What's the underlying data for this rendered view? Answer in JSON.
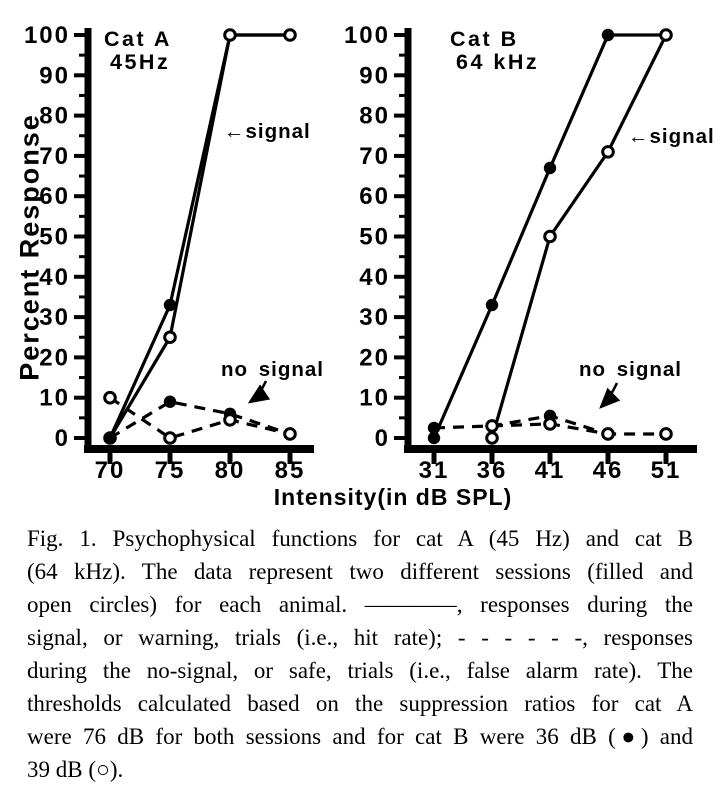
{
  "figure": {
    "y_axis_label": "Percent Response",
    "x_axis_label": "Intensity(in dB SPL)"
  },
  "chart_data": [
    {
      "type": "line",
      "title": "Cat A",
      "subtitle": "45Hz",
      "ylabel": "Percent Response",
      "xlabel": "Intensity(in dB SPL)",
      "ylim": [
        0,
        100
      ],
      "y_tick_step": 10,
      "y_minor_tick_step": 5,
      "x_ticks": [
        70,
        75,
        80,
        85
      ],
      "annotations": {
        "signal_label": "←signal",
        "no_signal_label": "no signal"
      },
      "series": [
        {
          "name": "signal - session 1 (filled circles)",
          "line": "solid",
          "marker": "filled",
          "x": [
            70,
            75,
            80,
            85
          ],
          "y": [
            0,
            33,
            100,
            100
          ]
        },
        {
          "name": "signal - session 2 (open circles)",
          "line": "solid",
          "marker": "open",
          "x": [
            70,
            75,
            80,
            85
          ],
          "y": [
            0,
            25,
            100,
            100
          ]
        },
        {
          "name": "no signal - session 1 (filled circles)",
          "line": "dashed",
          "marker": "filled",
          "x": [
            70,
            75,
            80,
            85
          ],
          "y": [
            0,
            9,
            6,
            1
          ]
        },
        {
          "name": "no signal - session 2 (open circles)",
          "line": "dashed",
          "marker": "open",
          "x": [
            70,
            75,
            80,
            85
          ],
          "y": [
            10,
            0,
            4.5,
            1
          ]
        }
      ]
    },
    {
      "type": "line",
      "title": "Cat B",
      "subtitle": "64 kHz",
      "ylabel": "Percent Response",
      "xlabel": "Intensity(in dB SPL)",
      "ylim": [
        0,
        100
      ],
      "y_tick_step": 10,
      "y_minor_tick_step": 5,
      "x_ticks": [
        31,
        36,
        41,
        46,
        51
      ],
      "annotations": {
        "signal_label": "←signal",
        "no_signal_label": "no signal"
      },
      "series": [
        {
          "name": "signal - session 1 (filled circles)",
          "line": "solid",
          "marker": "filled",
          "x": [
            31,
            36,
            41,
            46,
            51
          ],
          "y": [
            0,
            33,
            67,
            100,
            100
          ]
        },
        {
          "name": "signal - session 2 (open circles)",
          "line": "solid",
          "marker": "open",
          "x": [
            36,
            41,
            46,
            51
          ],
          "y": [
            0,
            50,
            71,
            100
          ]
        },
        {
          "name": "no signal - session 1 (filled circles)",
          "line": "dashed",
          "marker": "filled",
          "x": [
            31,
            36,
            41,
            46
          ],
          "y": [
            2.5,
            3,
            5.5,
            1
          ]
        },
        {
          "name": "no signal - session 2 (open circles)",
          "line": "dashed",
          "marker": "open",
          "x": [
            36,
            41,
            46,
            51
          ],
          "y": [
            3,
            3.5,
            1,
            1
          ]
        }
      ]
    }
  ],
  "caption": {
    "lines": [
      "Fig. 1. Psychophysical functions for cat A (45 Hz) and cat B",
      "(64 kHz). The data represent two different sessions (filled and",
      "open circles) for each animal. ————, responses during the",
      "signal, or warning, trials (i.e., hit rate); - - - - - -, responses",
      "during the no-signal, or safe, trials (i.e., false alarm rate). The",
      "thresholds calculated based on the suppression ratios for cat A",
      "were 76 dB for both sessions and for cat B were 36 dB (●) and",
      "39 dB (○)."
    ]
  }
}
